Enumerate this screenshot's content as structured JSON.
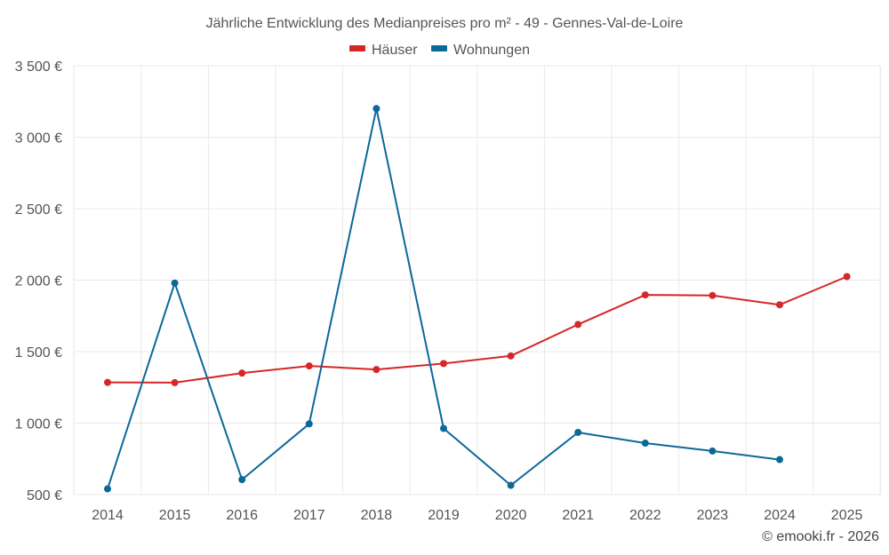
{
  "chart_data": {
    "type": "line",
    "title": "Jährliche Entwicklung des Medianpreises pro m² - 49 - Gennes-Val-de-Loire",
    "x": [
      "2014",
      "2015",
      "2016",
      "2017",
      "2018",
      "2019",
      "2020",
      "2021",
      "2022",
      "2023",
      "2024",
      "2025"
    ],
    "y_ticks": [
      "500 €",
      "1 000 €",
      "1 500 €",
      "2 000 €",
      "2 500 €",
      "3 000 €",
      "3 500 €"
    ],
    "y_tick_values": [
      500,
      1000,
      1500,
      2000,
      2500,
      3000,
      3500
    ],
    "ylim": [
      500,
      3500
    ],
    "grid": true,
    "legend_position": "top-center",
    "series": [
      {
        "name": "Häuser",
        "color": "#d62728",
        "values": [
          1285,
          1283,
          1350,
          1400,
          1375,
          1417,
          1470,
          1690,
          1897,
          1893,
          1828,
          2025
        ]
      },
      {
        "name": "Wohnungen",
        "color": "#0d6899",
        "values": [
          540,
          1980,
          605,
          995,
          3200,
          963,
          565,
          935,
          860,
          805,
          745,
          null
        ]
      }
    ]
  },
  "credit": "© emooki.fr - 2026"
}
